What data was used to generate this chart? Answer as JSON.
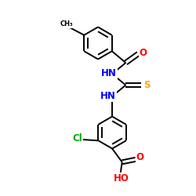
{
  "background_color": "#ffffff",
  "bond_color": "#000000",
  "atom_colors": {
    "N": "#0000ff",
    "O": "#ff0000",
    "S": "#ffa500",
    "Cl": "#00aa00",
    "C": "#000000"
  },
  "figsize": [
    2.5,
    2.5
  ],
  "dpi": 100,
  "xlim": [
    0,
    10
  ],
  "ylim": [
    0,
    10
  ]
}
